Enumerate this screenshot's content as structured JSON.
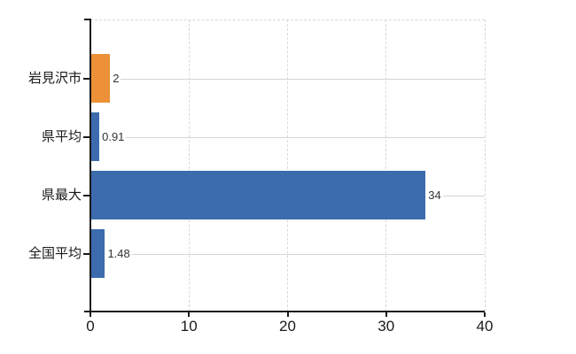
{
  "chart_data": {
    "type": "bar",
    "orientation": "horizontal",
    "title": "",
    "categories": [
      "岩見沢市",
      "県平均",
      "県最大",
      "全国平均"
    ],
    "values": [
      2,
      0.91,
      34,
      1.48
    ],
    "value_labels": [
      "2",
      "0.91",
      "34",
      "1.48"
    ],
    "bar_colors": [
      "#EC9138",
      "#3C6CAD",
      "#3C6CAD",
      "#3C6CAD"
    ],
    "highlight_color": "#EC9138",
    "base_color": "#3C6CAD",
    "x_ticks": [
      0,
      10,
      20,
      30,
      40
    ],
    "x_tick_labels": [
      "0",
      "10",
      "20",
      "30",
      "40"
    ],
    "xlim": [
      0,
      40
    ],
    "grid": "vertical-dashed",
    "legend": "none",
    "background": "#ffffff",
    "axis_color": "#1a1a1a",
    "grid_color": "#d9d9d9",
    "leader_line_color": "#d4d4d4"
  }
}
